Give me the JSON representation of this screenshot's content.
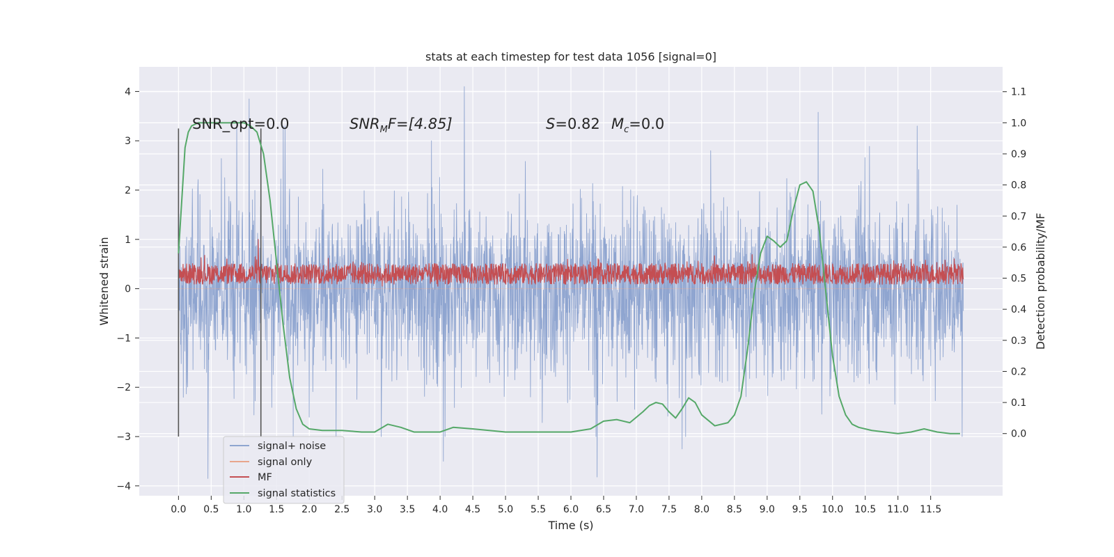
{
  "chart_data": {
    "type": "line",
    "title": "stats at each timestep for test data 1056 [signal=0]",
    "xlabel": "Time (s)",
    "ylabel": "Whitened strain",
    "ylabel_right": "Detection probability/MF",
    "xlim": [
      -0.6,
      12.6
    ],
    "ylim": [
      -4.2,
      4.5
    ],
    "ylim_right": [
      -0.2,
      1.18
    ],
    "x_ticks": [
      0.0,
      0.5,
      1.0,
      1.5,
      2.0,
      2.5,
      3.0,
      3.5,
      4.0,
      4.5,
      5.0,
      5.5,
      6.0,
      6.5,
      7.0,
      7.5,
      8.0,
      8.5,
      9.0,
      9.5,
      10.0,
      10.5,
      11.0,
      11.5
    ],
    "y_ticks": [
      -4,
      -3,
      -2,
      -1,
      0,
      1,
      2,
      3,
      4
    ],
    "y_ticks_right": [
      0.0,
      0.1,
      0.2,
      0.3,
      0.4,
      0.5,
      0.6,
      0.7,
      0.8,
      0.9,
      1.0,
      1.1
    ],
    "grid": true,
    "legend_position": "lower-left",
    "annotations": {
      "snr_opt": "SNR_opt=0.0",
      "snr_mf_label": "SNR",
      "snr_mf_sub": "M",
      "snr_mf_rest": "F=[4.85]",
      "s_label": "S",
      "s_value": "=0.82",
      "mc_label": "M",
      "mc_sub": "c",
      "mc_value": "=0.0"
    },
    "vertical_markers": [
      0.0,
      1.26
    ],
    "series": [
      {
        "name": "signal+ noise",
        "color": "#8fa5d0",
        "axis": "left",
        "x_range": [
          0.0,
          12.0
        ],
        "envelope_typical": [
          -1.5,
          1.6
        ],
        "extremes": [
          [
            0.45,
            -3.85
          ],
          [
            1.08,
            3.85
          ],
          [
            4.37,
            4.1
          ],
          [
            6.4,
            -3.82
          ],
          [
            9.78,
            3.58
          ],
          [
            7.7,
            -3.25
          ],
          [
            3.1,
            -3.0
          ],
          [
            4.05,
            -3.5
          ]
        ]
      },
      {
        "name": "signal only",
        "color": "#e8a58c",
        "axis": "left",
        "x_range": [
          0.0,
          12.0
        ],
        "values_constant": 0.0
      },
      {
        "name": "MF",
        "color": "#c44e52",
        "axis": "left",
        "x_range": [
          0.0,
          12.0
        ],
        "band": [
          0.05,
          0.6
        ],
        "peak": [
          1.22,
          1.0
        ]
      },
      {
        "name": "signal statistics",
        "color": "#55a868",
        "axis": "right",
        "x": [
          0.0,
          0.05,
          0.1,
          0.15,
          0.2,
          0.3,
          0.4,
          0.6,
          0.8,
          1.0,
          1.1,
          1.2,
          1.3,
          1.4,
          1.5,
          1.6,
          1.7,
          1.8,
          1.9,
          2.0,
          2.2,
          2.5,
          2.8,
          3.0,
          3.2,
          3.4,
          3.6,
          4.0,
          4.2,
          4.5,
          5.0,
          5.5,
          6.0,
          6.3,
          6.5,
          6.7,
          6.9,
          7.1,
          7.2,
          7.3,
          7.4,
          7.5,
          7.6,
          7.7,
          7.8,
          7.9,
          8.0,
          8.2,
          8.4,
          8.5,
          8.6,
          8.7,
          8.8,
          8.9,
          9.0,
          9.1,
          9.2,
          9.3,
          9.4,
          9.5,
          9.6,
          9.7,
          9.8,
          9.9,
          10.0,
          10.1,
          10.2,
          10.3,
          10.4,
          10.6,
          10.8,
          11.0,
          11.2,
          11.4,
          11.6,
          11.8,
          11.95
        ],
        "values": [
          0.58,
          0.75,
          0.92,
          0.97,
          0.99,
          1.0,
          1.0,
          1.0,
          1.0,
          1.0,
          0.99,
          0.97,
          0.9,
          0.75,
          0.55,
          0.35,
          0.18,
          0.08,
          0.03,
          0.015,
          0.01,
          0.01,
          0.005,
          0.005,
          0.03,
          0.02,
          0.005,
          0.005,
          0.02,
          0.015,
          0.005,
          0.005,
          0.005,
          0.015,
          0.04,
          0.045,
          0.035,
          0.07,
          0.09,
          0.1,
          0.095,
          0.07,
          0.05,
          0.08,
          0.115,
          0.1,
          0.06,
          0.025,
          0.035,
          0.06,
          0.12,
          0.27,
          0.45,
          0.58,
          0.635,
          0.62,
          0.6,
          0.62,
          0.72,
          0.8,
          0.81,
          0.78,
          0.65,
          0.45,
          0.25,
          0.12,
          0.06,
          0.03,
          0.02,
          0.01,
          0.005,
          0.0,
          0.005,
          0.015,
          0.005,
          0.0,
          0.0
        ]
      }
    ]
  }
}
